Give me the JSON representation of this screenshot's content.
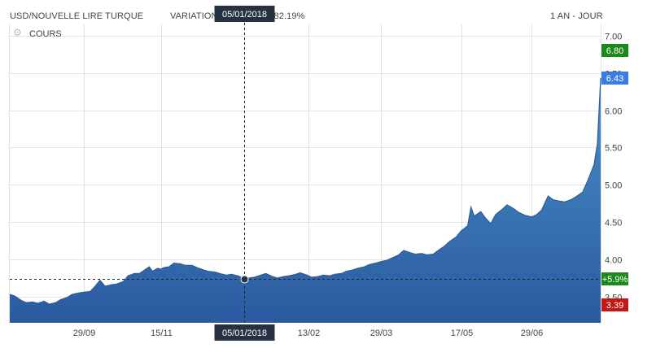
{
  "header": {
    "pair": "USD/NOUVELLE LIRE TURQUE",
    "variation_label": "VARIATION",
    "variation_value": "+82.19%",
    "period": "1 AN - JOUR"
  },
  "legend": {
    "series_label": "COURS",
    "icon": "gear-icon"
  },
  "crosshair": {
    "date_label": "05/01/2018",
    "value": 3.74,
    "change_label": "+5.9%"
  },
  "badges": {
    "high": {
      "label": "6.80",
      "value": 6.8,
      "color": "#1a8a1a"
    },
    "last": {
      "label": "6.43",
      "value": 6.43,
      "color": "#3a7de0"
    },
    "low": {
      "label": "3.39",
      "value": 3.39,
      "color": "#c21818"
    },
    "change": {
      "color": "#1a8a1a"
    }
  },
  "colors": {
    "area_top": "#4a90c8",
    "area_bottom": "#2a5aa0",
    "line": "#2a5d99",
    "grid": "#e3e3e3"
  },
  "chart_data": {
    "type": "area",
    "title": "USD/NOUVELLE LIRE TURQUE",
    "xlabel": "",
    "ylabel": "",
    "x_ticks": [
      "29/09",
      "15/11",
      "05/01/2018",
      "13/02",
      "29/03",
      "17/05",
      "29/06"
    ],
    "y_ticks": [
      "3.50",
      "4.00",
      "4.50",
      "5.00",
      "5.50",
      "6.00",
      "6.50",
      "7.00"
    ],
    "ylim": [
      3.15,
      7.15
    ],
    "grid": true,
    "series": [
      {
        "name": "COURS",
        "points": [
          [
            "2017-08-15",
            3.53
          ],
          [
            "2017-08-18",
            3.51
          ],
          [
            "2017-08-22",
            3.45
          ],
          [
            "2017-08-25",
            3.42
          ],
          [
            "2017-08-29",
            3.43
          ],
          [
            "2017-09-01",
            3.41
          ],
          [
            "2017-09-05",
            3.44
          ],
          [
            "2017-09-08",
            3.4
          ],
          [
            "2017-09-12",
            3.42
          ],
          [
            "2017-09-15",
            3.46
          ],
          [
            "2017-09-19",
            3.49
          ],
          [
            "2017-09-22",
            3.53
          ],
          [
            "2017-09-26",
            3.55
          ],
          [
            "2017-09-29",
            3.56
          ],
          [
            "2017-10-03",
            3.57
          ],
          [
            "2017-10-06",
            3.64
          ],
          [
            "2017-10-09",
            3.72
          ],
          [
            "2017-10-12",
            3.64
          ],
          [
            "2017-10-16",
            3.66
          ],
          [
            "2017-10-19",
            3.67
          ],
          [
            "2017-10-23",
            3.7
          ],
          [
            "2017-10-26",
            3.78
          ],
          [
            "2017-10-30",
            3.81
          ],
          [
            "2017-11-02",
            3.81
          ],
          [
            "2017-11-06",
            3.87
          ],
          [
            "2017-11-08",
            3.9
          ],
          [
            "2017-11-10",
            3.84
          ],
          [
            "2017-11-13",
            3.88
          ],
          [
            "2017-11-15",
            3.87
          ],
          [
            "2017-11-17",
            3.89
          ],
          [
            "2017-11-20",
            3.9
          ],
          [
            "2017-11-23",
            3.95
          ],
          [
            "2017-11-27",
            3.94
          ],
          [
            "2017-11-30",
            3.92
          ],
          [
            "2017-12-04",
            3.92
          ],
          [
            "2017-12-07",
            3.89
          ],
          [
            "2017-12-11",
            3.86
          ],
          [
            "2017-12-14",
            3.84
          ],
          [
            "2017-12-18",
            3.83
          ],
          [
            "2017-12-21",
            3.81
          ],
          [
            "2017-12-25",
            3.79
          ],
          [
            "2017-12-28",
            3.8
          ],
          [
            "2018-01-01",
            3.78
          ],
          [
            "2018-01-05",
            3.74
          ],
          [
            "2018-01-08",
            3.75
          ],
          [
            "2018-01-11",
            3.76
          ],
          [
            "2018-01-15",
            3.79
          ],
          [
            "2018-01-18",
            3.81
          ],
          [
            "2018-01-22",
            3.77
          ],
          [
            "2018-01-25",
            3.75
          ],
          [
            "2018-01-29",
            3.77
          ],
          [
            "2018-02-01",
            3.78
          ],
          [
            "2018-02-05",
            3.8
          ],
          [
            "2018-02-08",
            3.82
          ],
          [
            "2018-02-12",
            3.79
          ],
          [
            "2018-02-15",
            3.76
          ],
          [
            "2018-02-19",
            3.77
          ],
          [
            "2018-02-22",
            3.79
          ],
          [
            "2018-02-26",
            3.78
          ],
          [
            "2018-03-01",
            3.8
          ],
          [
            "2018-03-05",
            3.81
          ],
          [
            "2018-03-08",
            3.84
          ],
          [
            "2018-03-12",
            3.86
          ],
          [
            "2018-03-15",
            3.88
          ],
          [
            "2018-03-19",
            3.9
          ],
          [
            "2018-03-22",
            3.93
          ],
          [
            "2018-03-26",
            3.95
          ],
          [
            "2018-03-29",
            3.97
          ],
          [
            "2018-04-02",
            3.99
          ],
          [
            "2018-04-05",
            4.02
          ],
          [
            "2018-04-09",
            4.06
          ],
          [
            "2018-04-12",
            4.12
          ],
          [
            "2018-04-16",
            4.09
          ],
          [
            "2018-04-19",
            4.07
          ],
          [
            "2018-04-23",
            4.08
          ],
          [
            "2018-04-26",
            4.06
          ],
          [
            "2018-04-30",
            4.07
          ],
          [
            "2018-05-03",
            4.12
          ],
          [
            "2018-05-07",
            4.18
          ],
          [
            "2018-05-10",
            4.24
          ],
          [
            "2018-05-14",
            4.3
          ],
          [
            "2018-05-17",
            4.38
          ],
          [
            "2018-05-21",
            4.45
          ],
          [
            "2018-05-23",
            4.7
          ],
          [
            "2018-05-25",
            4.58
          ],
          [
            "2018-05-29",
            4.64
          ],
          [
            "2018-06-01",
            4.55
          ],
          [
            "2018-06-04",
            4.48
          ],
          [
            "2018-06-07",
            4.6
          ],
          [
            "2018-06-11",
            4.67
          ],
          [
            "2018-06-14",
            4.73
          ],
          [
            "2018-06-18",
            4.68
          ],
          [
            "2018-06-21",
            4.63
          ],
          [
            "2018-06-25",
            4.59
          ],
          [
            "2018-06-29",
            4.57
          ],
          [
            "2018-07-02",
            4.6
          ],
          [
            "2018-07-05",
            4.66
          ],
          [
            "2018-07-09",
            4.85
          ],
          [
            "2018-07-12",
            4.8
          ],
          [
            "2018-07-16",
            4.78
          ],
          [
            "2018-07-19",
            4.77
          ],
          [
            "2018-07-23",
            4.8
          ],
          [
            "2018-07-26",
            4.84
          ],
          [
            "2018-07-30",
            4.9
          ],
          [
            "2018-08-02",
            5.05
          ],
          [
            "2018-08-06",
            5.27
          ],
          [
            "2018-08-08",
            5.55
          ],
          [
            "2018-08-10",
            6.43
          ]
        ]
      }
    ]
  }
}
